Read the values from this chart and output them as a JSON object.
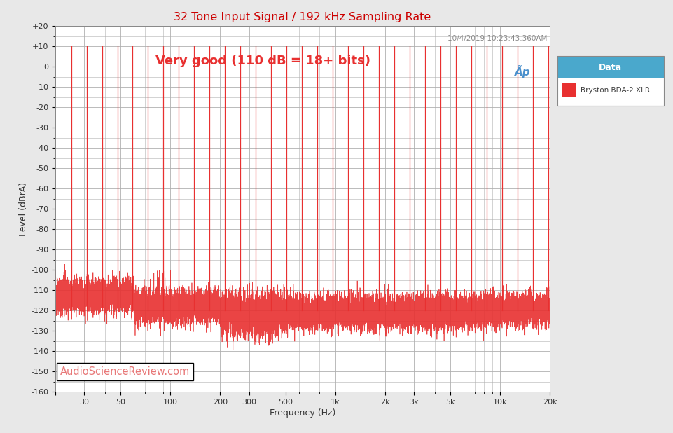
{
  "title": "32 Tone Input Signal / 192 kHz Sampling Rate",
  "subtitle": "Very good (110 dB = 18+ bits)",
  "timestamp": "10/4/2019 10:23:43.360AM",
  "xlabel": "Frequency (Hz)",
  "ylabel": "Level (dBrA)",
  "xlim": [
    20,
    20000
  ],
  "ylim": [
    -160,
    20
  ],
  "yticks": [
    20,
    10,
    0,
    -10,
    -20,
    -30,
    -40,
    -50,
    -60,
    -70,
    -80,
    -90,
    -100,
    -110,
    -120,
    -130,
    -140,
    -150,
    -160
  ],
  "ytick_labels": [
    "+20",
    "+10",
    "0",
    "-10",
    "-20",
    "-30",
    "-40",
    "-50",
    "-60",
    "-70",
    "-80",
    "-90",
    "-100",
    "-110",
    "-120",
    "-130",
    "-140",
    "-150",
    "-160"
  ],
  "xtick_positions": [
    20,
    30,
    50,
    100,
    200,
    300,
    500,
    1000,
    2000,
    3000,
    5000,
    10000,
    20000
  ],
  "xtick_labels": [
    "",
    "30",
    "50",
    "100",
    "200",
    "300",
    "500",
    "1k",
    "2k",
    "3k",
    "5k",
    "10k",
    "20k"
  ],
  "bg_color": "#e8e8e8",
  "plot_bg_color": "#ffffff",
  "grid_color": "#b0b0b0",
  "line_color": "#e83030",
  "title_color": "#cc0000",
  "subtitle_color": "#e83030",
  "timestamp_color": "#888888",
  "asr_text_color": "#e87878",
  "legend_header_bg": "#4aa8cc",
  "legend_header_text": "#ffffff",
  "legend_text": "#404040",
  "noise_floor_base": -120,
  "tone_top": 10
}
